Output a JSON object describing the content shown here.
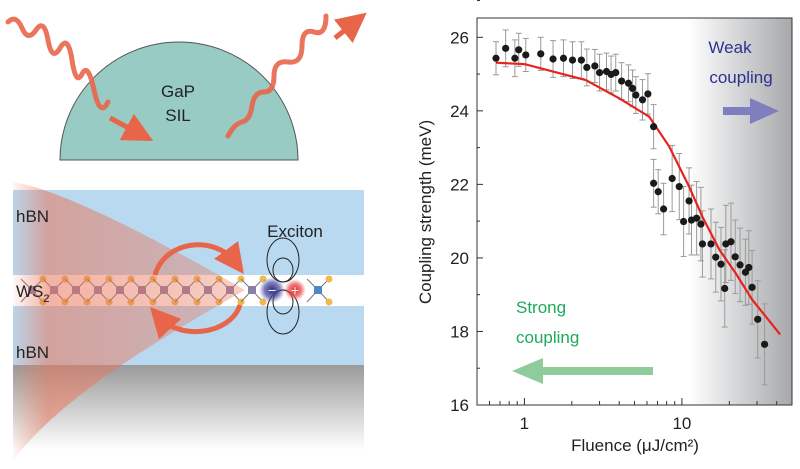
{
  "schematic": {
    "lens_label_1": "GaP",
    "lens_label_2": "SIL",
    "top_layer_label": "hBN",
    "middle_layer_label": "WS",
    "middle_layer_subscript": "2",
    "bottom_layer_label": "hBN",
    "exciton_label": "Exciton",
    "electron_symbol": "−",
    "hole_symbol": "+",
    "colors": {
      "lens": "#97cbc4",
      "hbn": "#b9d9f0",
      "beam": "#e8755a",
      "substrate": "#a9a9a9"
    }
  },
  "chart_data": {
    "type": "scatter",
    "xlabel": "Fluence (μJ/cm²)",
    "ylabel": "Coupling strength (meV)",
    "x_scale": "log",
    "xlim": [
      0.5,
      50
    ],
    "ylim": [
      16,
      26.5
    ],
    "x_ticks": [
      {
        "value": 1,
        "label": "1"
      },
      {
        "value": 10,
        "label": "10"
      }
    ],
    "y_ticks": [
      {
        "value": 16,
        "label": "16"
      },
      {
        "value": 18,
        "label": "18"
      },
      {
        "value": 20,
        "label": "20"
      },
      {
        "value": 22,
        "label": "22"
      },
      {
        "value": 24,
        "label": "24"
      },
      {
        "value": 26,
        "label": "26"
      }
    ],
    "grid": false,
    "series": [
      {
        "kind": "points_with_error_bars",
        "color": "#1a1a1a",
        "error_color": "#9a9a9a",
        "x": [
          0.66,
          0.76,
          0.87,
          0.92,
          1.02,
          1.27,
          1.52,
          1.77,
          2.02,
          2.3,
          2.49,
          2.8,
          3.0,
          3.32,
          3.55,
          3.8,
          4.14,
          4.58,
          4.86,
          5.1,
          5.62,
          6.08,
          6.61,
          6.61,
          7.07,
          7.65,
          8.67,
          9.62,
          10.25,
          11.1,
          11.5,
          12.4,
          13.2,
          13.5,
          15.3,
          16.4,
          17.7,
          18.7,
          19.0,
          20.5,
          21.8,
          23.4,
          25.3,
          26.6,
          27.9,
          30.3,
          33.5
        ],
        "y": [
          25.43,
          25.7,
          25.43,
          25.66,
          25.52,
          25.55,
          25.41,
          25.43,
          25.38,
          25.38,
          25.18,
          25.22,
          25.04,
          25.07,
          24.99,
          25.04,
          24.81,
          24.75,
          24.61,
          24.43,
          24.3,
          24.46,
          23.57,
          22.03,
          21.8,
          21.33,
          22.16,
          21.94,
          20.99,
          21.55,
          21.03,
          21.08,
          20.92,
          20.38,
          20.38,
          20.02,
          19.83,
          19.17,
          20.38,
          20.44,
          20.03,
          19.81,
          19.61,
          19.74,
          19.2,
          18.33,
          17.65
        ],
        "error": [
          0.45,
          0.5,
          0.5,
          0.45,
          0.45,
          0.45,
          0.5,
          0.5,
          0.5,
          0.5,
          0.5,
          0.45,
          0.5,
          0.5,
          0.5,
          0.5,
          0.5,
          0.5,
          0.5,
          0.5,
          0.55,
          0.55,
          0.6,
          0.65,
          0.6,
          0.7,
          0.9,
          0.9,
          0.95,
          0.9,
          0.95,
          1.0,
          1.0,
          0.9,
          0.95,
          0.95,
          1.0,
          1.05,
          1.05,
          1.05,
          1.0,
          1.0,
          0.9,
          1.0,
          1.0,
          1.05,
          1.1
        ]
      },
      {
        "kind": "fit_line",
        "color": "#e8231e",
        "x": [
          0.66,
          1,
          2.45,
          4,
          6.2,
          8.3,
          11.1,
          13.5,
          17.3,
          22,
          28,
          42
        ],
        "y": [
          25.31,
          25.27,
          24.84,
          24.34,
          23.84,
          23.03,
          21.94,
          21.12,
          20.22,
          19.58,
          18.86,
          17.92
        ]
      }
    ],
    "shaded_region": {
      "x_start": 11.1,
      "label": "Weak coupling regime"
    },
    "annotations": [
      {
        "text_1": "Weak",
        "text_2": "coupling",
        "color": "#2e3191",
        "arrow_color": "#7f7fbf",
        "arrow_direction": "right"
      },
      {
        "text_1": "Strong",
        "text_2": "coupling",
        "color": "#1daa5a",
        "arrow_color": "#8fcc9c",
        "arrow_direction": "left"
      }
    ]
  }
}
